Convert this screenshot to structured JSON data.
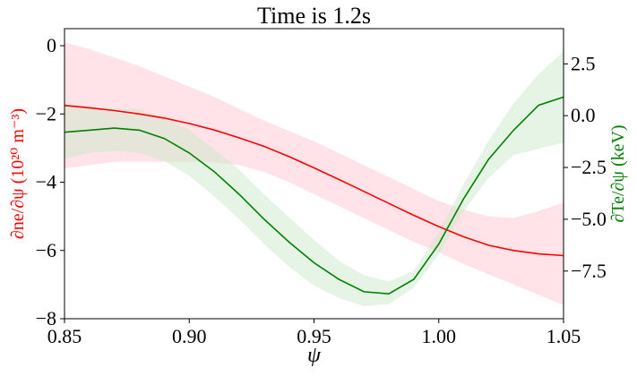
{
  "chart_data": {
    "type": "line",
    "title": "Time is 1.2s",
    "xlabel": "ψ",
    "ylabel_left": "∂ne/∂ψ (10²⁰ m⁻³)",
    "ylabel_right": "∂Te/∂ψ (keV)",
    "xlim": [
      0.85,
      1.05
    ],
    "ylim_left": [
      -8.0,
      0.5
    ],
    "ylim_right": [
      -9.8,
      4.2
    ],
    "xticks": [
      "0.85",
      "0.90",
      "0.95",
      "1.00",
      "1.05"
    ],
    "yticks_left": [
      "0",
      "−2",
      "−4",
      "−6",
      "−8"
    ],
    "yticks_right": [
      "2.5",
      "0.0",
      "−2.5",
      "−5.0",
      "−7.5"
    ],
    "grid": false,
    "series": [
      {
        "axis": "left",
        "color": "#ff0000",
        "band_color": "#ffc0cb",
        "x": [
          0.85,
          0.86,
          0.87,
          0.88,
          0.89,
          0.9,
          0.91,
          0.92,
          0.93,
          0.94,
          0.95,
          0.96,
          0.97,
          0.98,
          0.99,
          1.0,
          1.01,
          1.02,
          1.03,
          1.04,
          1.05
        ],
        "y": [
          -1.75,
          -1.82,
          -1.9,
          -2.0,
          -2.12,
          -2.28,
          -2.47,
          -2.7,
          -2.95,
          -3.25,
          -3.58,
          -3.92,
          -4.27,
          -4.62,
          -4.97,
          -5.3,
          -5.6,
          -5.85,
          -6.0,
          -6.1,
          -6.15
        ],
        "y_lower": [
          -3.6,
          -3.5,
          -3.4,
          -3.4,
          -3.4,
          -3.4,
          -3.42,
          -3.5,
          -3.7,
          -4.0,
          -4.35,
          -4.7,
          -5.05,
          -5.4,
          -5.75,
          -6.05,
          -6.4,
          -6.7,
          -7.0,
          -7.3,
          -7.6
        ],
        "y_upper": [
          0.1,
          -0.1,
          -0.35,
          -0.6,
          -0.9,
          -1.2,
          -1.5,
          -1.85,
          -2.2,
          -2.5,
          -2.8,
          -3.15,
          -3.5,
          -3.85,
          -4.2,
          -4.55,
          -4.8,
          -5.0,
          -5.05,
          -4.85,
          -4.6
        ]
      },
      {
        "axis": "right",
        "color": "#008000",
        "band_color": "#c7e6c7",
        "x": [
          0.85,
          0.86,
          0.87,
          0.88,
          0.89,
          0.9,
          0.91,
          0.92,
          0.93,
          0.94,
          0.95,
          0.96,
          0.97,
          0.98,
          0.99,
          1.0,
          1.01,
          1.02,
          1.03,
          1.04,
          1.05
        ],
        "y": [
          -0.8,
          -0.7,
          -0.6,
          -0.7,
          -1.1,
          -1.8,
          -2.7,
          -3.8,
          -5.0,
          -6.1,
          -7.1,
          -7.9,
          -8.5,
          -8.6,
          -7.9,
          -6.2,
          -4.0,
          -2.1,
          -0.7,
          0.5,
          0.9
        ],
        "y_lower": [
          -2.1,
          -1.8,
          -1.7,
          -1.8,
          -2.2,
          -2.9,
          -3.9,
          -5.0,
          -6.2,
          -7.3,
          -8.2,
          -8.8,
          -9.2,
          -9.1,
          -8.3,
          -6.7,
          -4.6,
          -3.0,
          -1.9,
          -1.6,
          -1.3
        ],
        "y_upper": [
          0.6,
          0.45,
          0.35,
          0.3,
          -0.1,
          -0.7,
          -1.6,
          -2.6,
          -3.8,
          -4.9,
          -6.0,
          -7.0,
          -7.7,
          -8.0,
          -7.5,
          -5.6,
          -3.3,
          -1.2,
          0.6,
          2.0,
          3.1
        ]
      }
    ]
  }
}
